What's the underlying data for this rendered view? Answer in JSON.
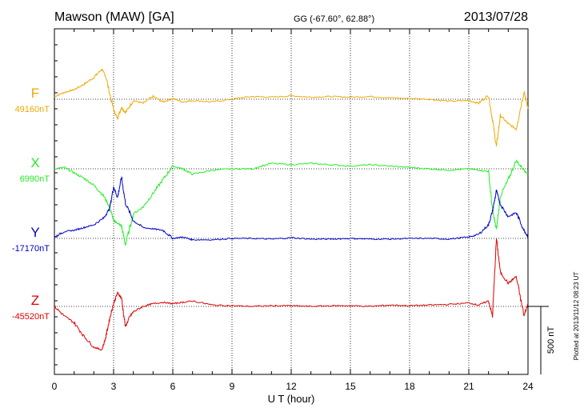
{
  "header": {
    "station": "Mawson (MAW)  [GA]",
    "coords": "GG (-67.60°,  62.88°)",
    "date": "2013/07/28"
  },
  "footer_note": "Plotted at 2013/11/12 08:23 UT",
  "chart_data": {
    "type": "line",
    "xlabel": "U T (hour)",
    "xlim": [
      0,
      24
    ],
    "xticks": [
      "0",
      "3",
      "6",
      "9",
      "12",
      "15",
      "18",
      "21",
      "24"
    ],
    "scale_label": "500 nT",
    "grid": true,
    "series": [
      {
        "name": "F",
        "baseline_label": "49160nT",
        "color": "#f0a800",
        "x": [
          0,
          0.5,
          1,
          1.5,
          2,
          2.4,
          2.6,
          3,
          3.2,
          3.4,
          3.6,
          4,
          4.5,
          5,
          5.5,
          6,
          6.5,
          7,
          8,
          9,
          10,
          11,
          12,
          13,
          14,
          15,
          16,
          17,
          18,
          19,
          20,
          21,
          21.5,
          22,
          22.2,
          22.4,
          22.6,
          23,
          23.4,
          23.8,
          24
        ],
        "y": [
          20,
          50,
          70,
          110,
          160,
          220,
          170,
          -80,
          -140,
          -60,
          -100,
          -10,
          -30,
          20,
          -20,
          5,
          -20,
          -10,
          -20,
          0,
          20,
          15,
          25,
          15,
          20,
          15,
          20,
          10,
          5,
          0,
          -15,
          -10,
          -30,
          30,
          -150,
          -350,
          -120,
          -180,
          -220,
          60,
          -70
        ]
      },
      {
        "name": "X",
        "baseline_label": "6990nT",
        "color": "#22ee22",
        "x": [
          0,
          0.5,
          1,
          1.5,
          2,
          2.5,
          2.8,
          3,
          3.2,
          3.4,
          3.6,
          4,
          4.5,
          5,
          5.5,
          6,
          6.5,
          7,
          8,
          9,
          10,
          11,
          12,
          13,
          14,
          15,
          16,
          17,
          18,
          19,
          20,
          21,
          21.5,
          22,
          22.2,
          22.4,
          22.6,
          23,
          23.4,
          23.8,
          24
        ],
        "y": [
          0,
          10,
          -30,
          -70,
          -120,
          -200,
          -280,
          -380,
          -400,
          -420,
          -560,
          -330,
          -280,
          -180,
          -80,
          20,
          0,
          -40,
          -10,
          0,
          0,
          40,
          30,
          40,
          30,
          20,
          30,
          20,
          10,
          0,
          -10,
          0,
          -10,
          -20,
          -300,
          -450,
          -200,
          -80,
          60,
          -10,
          -40
        ]
      },
      {
        "name": "Y",
        "baseline_label": "-17170nT",
        "color": "#0000cc",
        "x": [
          0,
          0.5,
          1,
          1.5,
          2,
          2.5,
          2.8,
          3,
          3.2,
          3.4,
          3.6,
          4,
          4.5,
          5,
          5.5,
          6,
          6.5,
          7,
          8,
          9,
          10,
          11,
          12,
          13,
          14,
          15,
          16,
          17,
          18,
          19,
          20,
          21,
          21.5,
          22,
          22.2,
          22.4,
          22.6,
          23,
          23.4,
          23.8,
          24
        ],
        "y": [
          10,
          50,
          60,
          80,
          100,
          150,
          220,
          380,
          300,
          450,
          260,
          130,
          80,
          70,
          60,
          0,
          10,
          -10,
          -10,
          0,
          0,
          -5,
          5,
          -5,
          -5,
          0,
          -5,
          -5,
          0,
          0,
          -5,
          10,
          30,
          100,
          200,
          350,
          250,
          160,
          190,
          60,
          10
        ]
      },
      {
        "name": "Z",
        "baseline_label": "-45520nT",
        "color": "#dd0000",
        "x": [
          0,
          0.5,
          1,
          1.5,
          2,
          2.4,
          2.6,
          2.8,
          3,
          3.2,
          3.4,
          3.6,
          3.8,
          4,
          4.5,
          5,
          5.5,
          6,
          6.5,
          7,
          8,
          9,
          10,
          11,
          12,
          13,
          14,
          15,
          16,
          17,
          18,
          19,
          20,
          21,
          21.5,
          22,
          22.2,
          22.4,
          22.6,
          23,
          23.4,
          23.8,
          24
        ],
        "y": [
          0,
          -70,
          -120,
          -220,
          -300,
          -320,
          -230,
          -90,
          20,
          100,
          60,
          -150,
          -80,
          -40,
          0,
          20,
          30,
          20,
          30,
          40,
          10,
          5,
          0,
          5,
          5,
          0,
          5,
          5,
          0,
          10,
          5,
          10,
          15,
          25,
          10,
          40,
          -70,
          500,
          250,
          170,
          220,
          -70,
          20
        ]
      }
    ]
  }
}
